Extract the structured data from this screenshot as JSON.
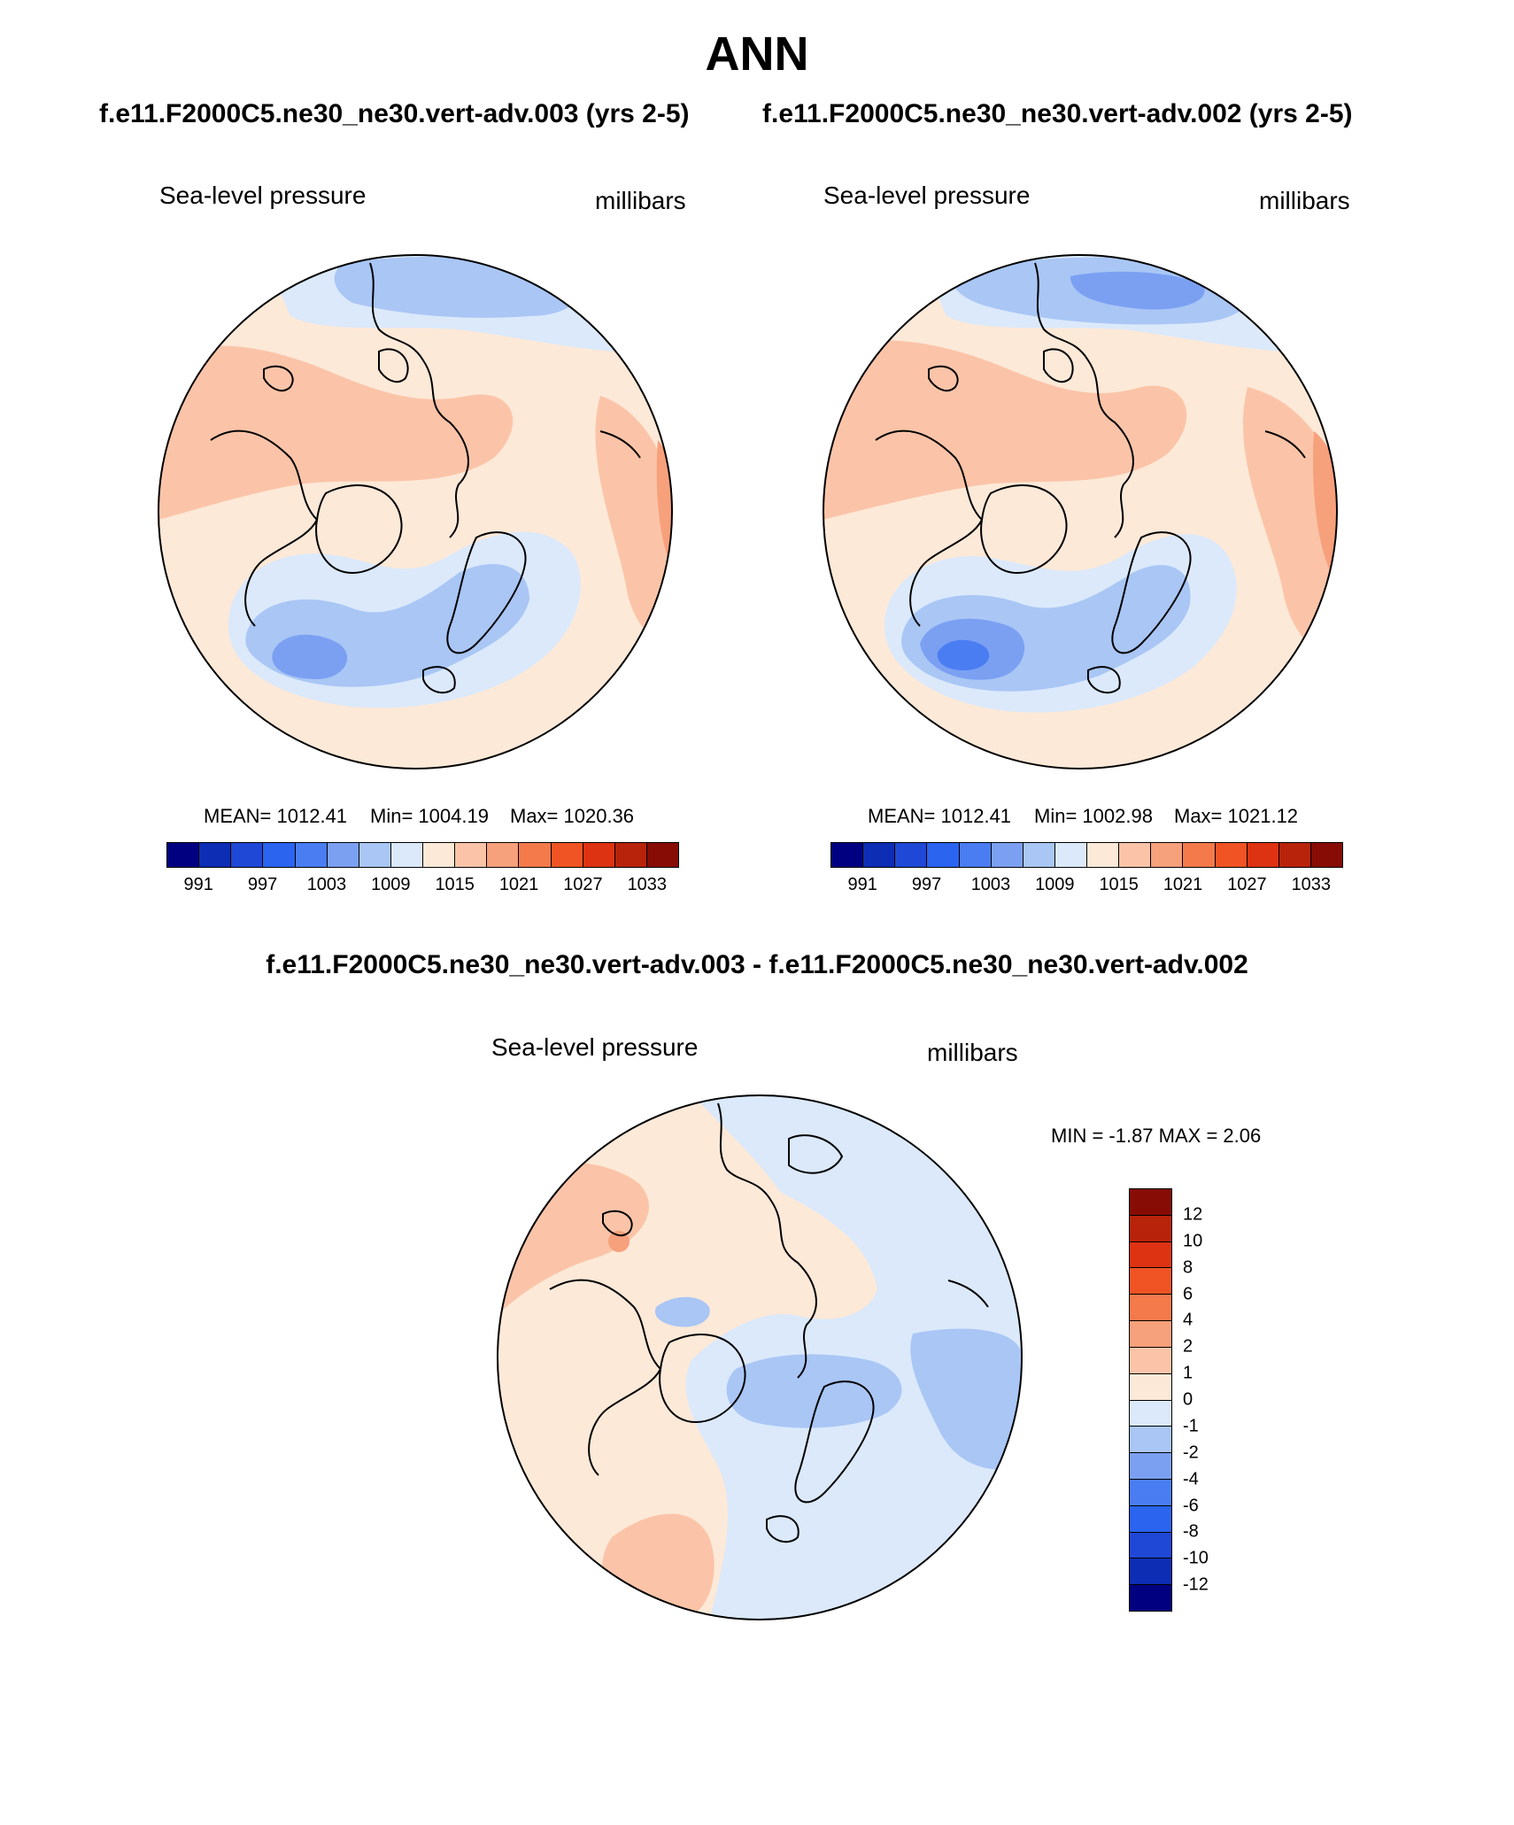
{
  "header": {
    "title": "ANN",
    "case_a": "f.e11.F2000C5.ne30_ne30.vert-adv.003 (yrs 2-5)",
    "case_b": "f.e11.F2000C5.ne30_ne30.vert-adv.002 (yrs 2-5)",
    "diff_title": "f.e11.F2000C5.ne30_ne30.vert-adv.003 - f.e11.F2000C5.ne30_ne30.vert-adv.002"
  },
  "colors": {
    "abs_scale": [
      "#000080",
      "#0d2db4",
      "#1f48d6",
      "#2a64ef",
      "#4a7df2",
      "#7ba0f2",
      "#a9c6f5",
      "#dbe9fb",
      "#fde9d8",
      "#fbc4a8",
      "#f7a07c",
      "#f47a4c",
      "#f05424",
      "#dd3312",
      "#b8230b",
      "#860c05"
    ],
    "diff_scale": [
      "#000080",
      "#0d2db4",
      "#1f48d6",
      "#2a64ef",
      "#4a7df2",
      "#7ba0f2",
      "#a9c6f5",
      "#dbe9fb",
      "#fde9d8",
      "#fbc4a8",
      "#f7a07c",
      "#f47a4c",
      "#f05424",
      "#dd3312",
      "#b8230b",
      "#860c05"
    ],
    "land_outline": "#000000"
  },
  "chart_data": [
    {
      "type": "polar-contour-map",
      "panel": "case_a",
      "variable": "Sea-level pressure",
      "units": "millibars",
      "mean_label": "MEAN= 1012.41",
      "min_label": "Min= 1004.19",
      "max_label": "Max= 1020.36",
      "mean": 1012.41,
      "min": 1004.19,
      "max": 1020.36,
      "colorbar_ticks": [
        "991",
        "997",
        "1003",
        "1009",
        "1015",
        "1021",
        "1027",
        "1033"
      ],
      "levels": [
        991,
        994,
        997,
        1000,
        1003,
        1006,
        1009,
        1012,
        1015,
        1018,
        1021,
        1024,
        1027,
        1030,
        1033
      ]
    },
    {
      "type": "polar-contour-map",
      "panel": "case_b",
      "variable": "Sea-level pressure",
      "units": "millibars",
      "mean_label": "MEAN= 1012.41",
      "min_label": "Min= 1002.98",
      "max_label": "Max= 1021.12",
      "mean": 1012.41,
      "min": 1002.98,
      "max": 1021.12,
      "colorbar_ticks": [
        "991",
        "997",
        "1003",
        "1009",
        "1015",
        "1021",
        "1027",
        "1033"
      ],
      "levels": [
        991,
        994,
        997,
        1000,
        1003,
        1006,
        1009,
        1012,
        1015,
        1018,
        1021,
        1024,
        1027,
        1030,
        1033
      ]
    },
    {
      "type": "polar-contour-map",
      "panel": "difference",
      "variable": "Sea-level pressure",
      "units": "millibars",
      "minmax_label": "MIN =  -1.87 MAX =   2.06",
      "min": -1.87,
      "max": 2.06,
      "colorbar_ticks": [
        "12",
        "10",
        "8",
        "6",
        "4",
        "2",
        "1",
        "0",
        "-1",
        "-2",
        "-4",
        "-6",
        "-8",
        "-10",
        "-12"
      ],
      "levels": [
        -12,
        -10,
        -8,
        -6,
        -4,
        -2,
        -1,
        0,
        1,
        2,
        4,
        6,
        8,
        10,
        12
      ]
    }
  ]
}
